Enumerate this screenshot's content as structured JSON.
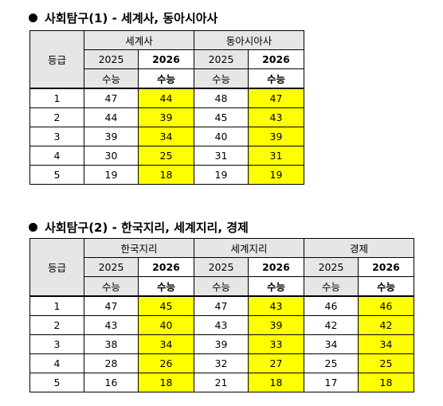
{
  "section1": {
    "title": "사회탐구(1) - 세계사, 동아시아사",
    "grade_header": "등급",
    "subjects": [
      "세계사",
      "동아시아사"
    ],
    "year_old": "2025",
    "year_new": "2026",
    "exam_label": "수능",
    "rows": [
      {
        "grade": "1",
        "values": [
          "47",
          "44",
          "48",
          "47"
        ]
      },
      {
        "grade": "2",
        "values": [
          "44",
          "39",
          "45",
          "43"
        ]
      },
      {
        "grade": "3",
        "values": [
          "39",
          "34",
          "40",
          "39"
        ]
      },
      {
        "grade": "4",
        "values": [
          "30",
          "25",
          "31",
          "31"
        ]
      },
      {
        "grade": "5",
        "values": [
          "19",
          "18",
          "19",
          "19"
        ]
      }
    ]
  },
  "section2": {
    "title": "사회탐구(2) - 한국지리, 세계지리, 경제",
    "grade_header": "등급",
    "subjects": [
      "한국지리",
      "세계지리",
      "경제"
    ],
    "year_old": "2025",
    "year_new": "2026",
    "exam_label": "수능",
    "rows": [
      {
        "grade": "1",
        "values": [
          "47",
          "45",
          "47",
          "43",
          "46",
          "46"
        ]
      },
      {
        "grade": "2",
        "values": [
          "43",
          "40",
          "43",
          "39",
          "42",
          "42"
        ]
      },
      {
        "grade": "3",
        "values": [
          "38",
          "34",
          "39",
          "33",
          "34",
          "34"
        ]
      },
      {
        "grade": "4",
        "values": [
          "28",
          "26",
          "32",
          "27",
          "25",
          "25"
        ]
      },
      {
        "grade": "5",
        "values": [
          "16",
          "18",
          "21",
          "18",
          "17",
          "18"
        ]
      }
    ]
  },
  "colors": {
    "highlight": "#ffff00",
    "header_bg": "#e6e6e6"
  }
}
